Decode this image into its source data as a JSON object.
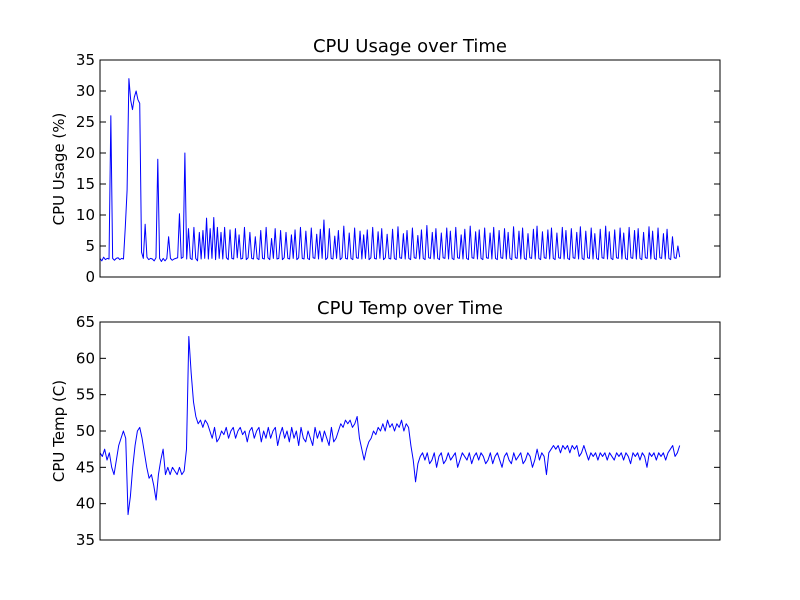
{
  "chart_data": [
    {
      "type": "line",
      "title": "CPU Usage over Time",
      "xlabel": "",
      "ylabel": "CPU Usage (%)",
      "ylim": [
        0,
        35
      ],
      "yticks": [
        0,
        5,
        10,
        15,
        20,
        25,
        30,
        35
      ],
      "x_axis_ticks": "none",
      "grid": false,
      "legend": "none",
      "color": "#0000ff",
      "series": [
        {
          "values": [
            3,
            2.6,
            3.2,
            2.8,
            3,
            2.9,
            26,
            3,
            2.7,
            3,
            3.1,
            2.8,
            3,
            2.9,
            8,
            14,
            32,
            28.5,
            27,
            29,
            30,
            28.6,
            28,
            4,
            3,
            8.5,
            3.2,
            2.8,
            3,
            2.9,
            2.6,
            3.1,
            19,
            3,
            2.5,
            3,
            2.6,
            3,
            6.5,
            3,
            2.7,
            2.9,
            3,
            3.1,
            10.2,
            3,
            3.2,
            20,
            2.9,
            7.8,
            3,
            2.8,
            8,
            3,
            2.6,
            7.2,
            2.9,
            7.5,
            3,
            9.5,
            2.9,
            7.8,
            3,
            9.6,
            2.8,
            8,
            3,
            7.2,
            2.9,
            8,
            3.1,
            2.8,
            7.6,
            3,
            2.9,
            7.8,
            3.1,
            6.8,
            2.9,
            3,
            8,
            2.8,
            3.1,
            7.2,
            3,
            2.9,
            6.5,
            3,
            2.8,
            7.5,
            3,
            2.9,
            8,
            3.1,
            2.8,
            6.2,
            3,
            7.8,
            2.9,
            3,
            7.5,
            2.8,
            3.1,
            7.2,
            3,
            2.9,
            6.8,
            3,
            7.6,
            2.8,
            3.1,
            8,
            3,
            2.9,
            7.4,
            3,
            2.8,
            7.9,
            3.1,
            3,
            6.9,
            2.9,
            7.7,
            3,
            9.2,
            2.8,
            3.1,
            7.8,
            3,
            2.9,
            6.6,
            3,
            7.5,
            2.8,
            3.1,
            8.2,
            3,
            2.9,
            7.1,
            3,
            2.8,
            7.9,
            3.1,
            3,
            7.4,
            2.9,
            6.8,
            3,
            7.6,
            2.8,
            3.1,
            8,
            3,
            2.9,
            7.3,
            3,
            7.8,
            2.8,
            3.1,
            6.9,
            3,
            2.9,
            7.7,
            3,
            2.8,
            8.1,
            3.1,
            3,
            7,
            2.9,
            7.5,
            3,
            2.8,
            7.9,
            3.1,
            3,
            6.7,
            2.9,
            7.6,
            3,
            2.8,
            8.3,
            3.1,
            3,
            7.2,
            2.9,
            7.8,
            3,
            2.8,
            7.1,
            3.1,
            3,
            7.9,
            2.9,
            7.4,
            3,
            2.8,
            8,
            3.1,
            3,
            6.8,
            2.9,
            7.7,
            3,
            2.8,
            8.2,
            3.1,
            3,
            7.3,
            2.9,
            7.6,
            3,
            2.8,
            7.9,
            3.1,
            3,
            7.1,
            2.9,
            8,
            3,
            2.8,
            7.5,
            3.1,
            3,
            7.8,
            2.9,
            7.2,
            3,
            2.8,
            8.1,
            3.1,
            3,
            7.4,
            2.9,
            7.9,
            3,
            2.8,
            7,
            3.1,
            3,
            7.7,
            2.9,
            8.2,
            3,
            2.8,
            7.3,
            3.1,
            3,
            7.6,
            2.9,
            7.9,
            3,
            2.8,
            7.1,
            3.1,
            3,
            8,
            2.9,
            7.5,
            3,
            2.8,
            7.8,
            3.1,
            3,
            7.2,
            2.9,
            8.1,
            3,
            2.8,
            7.4,
            3.1,
            3,
            7.9,
            2.9,
            7,
            3,
            2.8,
            7.7,
            3.1,
            3,
            8.2,
            2.9,
            7.3,
            3,
            2.8,
            7.6,
            3.1,
            3,
            7.9,
            2.9,
            7.1,
            3,
            2.8,
            8,
            3.1,
            3,
            7.5,
            2.9,
            7.8,
            3,
            2.8,
            7.2,
            3.1,
            3,
            8.1,
            2.9,
            7.4,
            3,
            2.8,
            7.9,
            3.1,
            3,
            7,
            2.9,
            7.7,
            3,
            2.8,
            6.5,
            3.1,
            3,
            5,
            3.2
          ]
        }
      ]
    },
    {
      "type": "line",
      "title": "CPU Temp over Time",
      "xlabel": "",
      "ylabel": "CPU Temp (C)",
      "ylim": [
        35,
        65
      ],
      "yticks": [
        35,
        40,
        45,
        50,
        55,
        60,
        65
      ],
      "x_axis_ticks": "none",
      "grid": false,
      "legend": "none",
      "color": "#0000ff",
      "series": [
        {
          "values": [
            47,
            46.5,
            47.5,
            46,
            47,
            45,
            44,
            46,
            48,
            49,
            50,
            49,
            38.5,
            41,
            45,
            48,
            50,
            50.5,
            49,
            47,
            45,
            43.5,
            44,
            42.5,
            40.5,
            44,
            46,
            47.5,
            44,
            45,
            44,
            45,
            44.5,
            44,
            45,
            44,
            44.5,
            47.5,
            63,
            58,
            54,
            52,
            51,
            51.5,
            50.5,
            51.5,
            51,
            50,
            49,
            50.5,
            48.5,
            49,
            50,
            49.5,
            50.5,
            49,
            50,
            50.5,
            49,
            50,
            50.5,
            49.5,
            50,
            48.5,
            50,
            50.5,
            49,
            50,
            50.5,
            48.5,
            50,
            49,
            50.5,
            49,
            50,
            50.5,
            48,
            49.5,
            50.5,
            49,
            50,
            48.5,
            50.5,
            49,
            50,
            48,
            50.5,
            49,
            48.5,
            50,
            49,
            48,
            50.5,
            49,
            50,
            48.5,
            50,
            49,
            48,
            50.5,
            48.5,
            49,
            50,
            51,
            50.5,
            51.5,
            51,
            51.5,
            50.5,
            51,
            52,
            49,
            47.5,
            46,
            47.5,
            48.5,
            49,
            50,
            49.5,
            50.5,
            50,
            51,
            50,
            51.5,
            50.5,
            51,
            50,
            51,
            50.5,
            51.5,
            50,
            51,
            50.5,
            48,
            46,
            43,
            45.5,
            46.5,
            47,
            46,
            47,
            45.5,
            46,
            47,
            45,
            46.5,
            47,
            45.5,
            46,
            47,
            46,
            46.5,
            47,
            45,
            46,
            47,
            46.5,
            46,
            47,
            45.5,
            46.5,
            47,
            46,
            47,
            46.5,
            45.5,
            46,
            47,
            45.5,
            46.5,
            47,
            46,
            45,
            46.5,
            47,
            46,
            45.5,
            47,
            46,
            46.5,
            47,
            45.5,
            46,
            47,
            46.5,
            45,
            46,
            47.5,
            46,
            47,
            46.5,
            44,
            47,
            47.5,
            48,
            47.5,
            48,
            47,
            48,
            47.5,
            48,
            47,
            48,
            47.5,
            48,
            46.5,
            47,
            48,
            47,
            46,
            47,
            46.5,
            47,
            46,
            47,
            46.5,
            47,
            46,
            47,
            46.5,
            46,
            47,
            46.5,
            47,
            46,
            47,
            46.5,
            45.5,
            47,
            46.5,
            47,
            46,
            47,
            46.5,
            45,
            47,
            46.5,
            47,
            46,
            47,
            46.5,
            47,
            46,
            47,
            47.5,
            48,
            46.5,
            47,
            48
          ]
        }
      ]
    }
  ]
}
